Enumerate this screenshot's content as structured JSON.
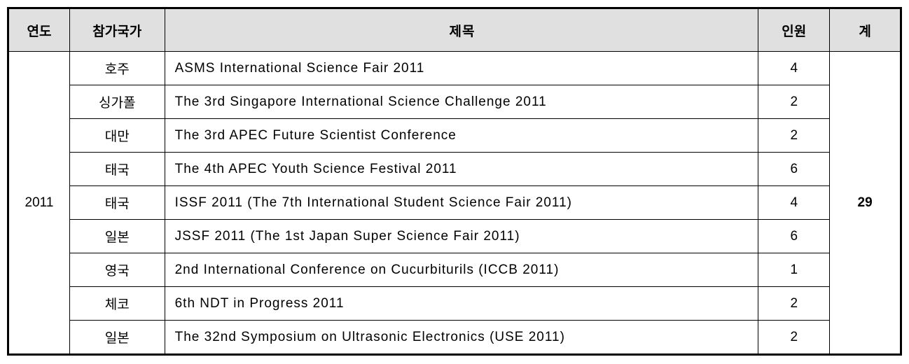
{
  "table": {
    "headers": {
      "year": "연도",
      "country": "참가국가",
      "title": "제목",
      "people": "인원",
      "total": "계"
    },
    "year": "2011",
    "total": "29",
    "rows": [
      {
        "country": "호주",
        "title": "ASMS International Science Fair 2011",
        "people": "4"
      },
      {
        "country": "싱가폴",
        "title": "The 3rd Singapore International Science Challenge 2011",
        "people": "2"
      },
      {
        "country": "대만",
        "title": "The 3rd APEC Future Scientist Conference",
        "people": "2"
      },
      {
        "country": "태국",
        "title": "The 4th APEC Youth Science Festival 2011",
        "people": "6"
      },
      {
        "country": "태국",
        "title": "ISSF 2011 (The 7th International Student Science Fair 2011)",
        "people": "4"
      },
      {
        "country": "일본",
        "title": "JSSF 2011 (The 1st Japan Super Science Fair 2011)",
        "people": "6"
      },
      {
        "country": "영국",
        "title": "2nd International Conference on Cucurbiturils (ICCB 2011)",
        "people": "1"
      },
      {
        "country": "체코",
        "title": "6th NDT in Progress 2011",
        "people": "2"
      },
      {
        "country": "일본",
        "title": "The 32nd Symposium on Ultrasonic Electronics (USE 2011)",
        "people": "2"
      }
    ],
    "colors": {
      "header_bg": "#e0e0e0",
      "border": "#000000",
      "background": "#ffffff"
    },
    "font_sizes": {
      "header": 19,
      "body": 19
    }
  }
}
